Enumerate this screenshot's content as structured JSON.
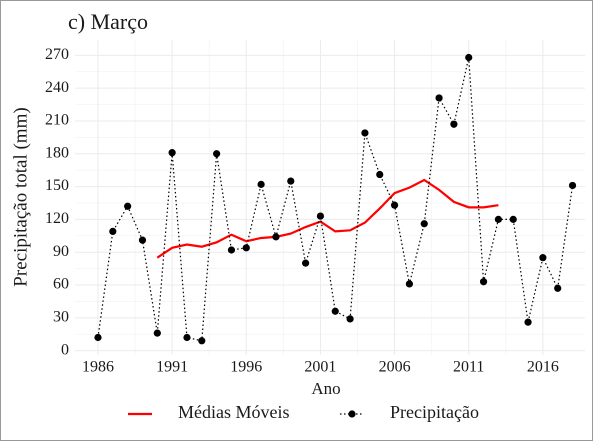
{
  "chart_data": {
    "type": "line",
    "title": "c) Março",
    "xlabel": "Ano",
    "ylabel": "Precipitação total (mm)",
    "x": [
      1986,
      1987,
      1988,
      1989,
      1990,
      1991,
      1992,
      1993,
      1994,
      1995,
      1996,
      1997,
      1998,
      1999,
      2000,
      2001,
      2002,
      2003,
      2004,
      2005,
      2006,
      2007,
      2008,
      2009,
      2010,
      2011,
      2012,
      2013,
      2014,
      2015,
      2016,
      2017,
      2018
    ],
    "series": [
      {
        "name": "Médias Móveis",
        "color": "#ff0000",
        "style": "line",
        "values": [
          null,
          null,
          null,
          null,
          85,
          94,
          97,
          95,
          99,
          106,
          100,
          103,
          104,
          107,
          113,
          118,
          109,
          110,
          117,
          130,
          144,
          149,
          156,
          147,
          136,
          131,
          131,
          133,
          null,
          null,
          null,
          null,
          null
        ]
      },
      {
        "name": "Precipitação",
        "color": "#000000",
        "style": "dotted-points",
        "values": [
          12,
          109,
          132,
          101,
          16,
          181,
          12,
          9,
          180,
          92,
          94,
          152,
          104,
          155,
          80,
          123,
          36,
          29,
          199,
          161,
          133,
          61,
          116,
          231,
          207,
          268,
          63,
          120,
          120,
          26,
          85,
          57,
          151
        ]
      }
    ],
    "xlim": [
      1984.45,
      2018.84
    ],
    "xticks": [
      1986,
      1991,
      1996,
      2001,
      2006,
      2011,
      2016
    ],
    "ylim": [
      -4,
      284
    ],
    "yticks": [
      0,
      30,
      60,
      90,
      120,
      150,
      180,
      210,
      240,
      270
    ],
    "grid": true,
    "legend": "bottom"
  }
}
